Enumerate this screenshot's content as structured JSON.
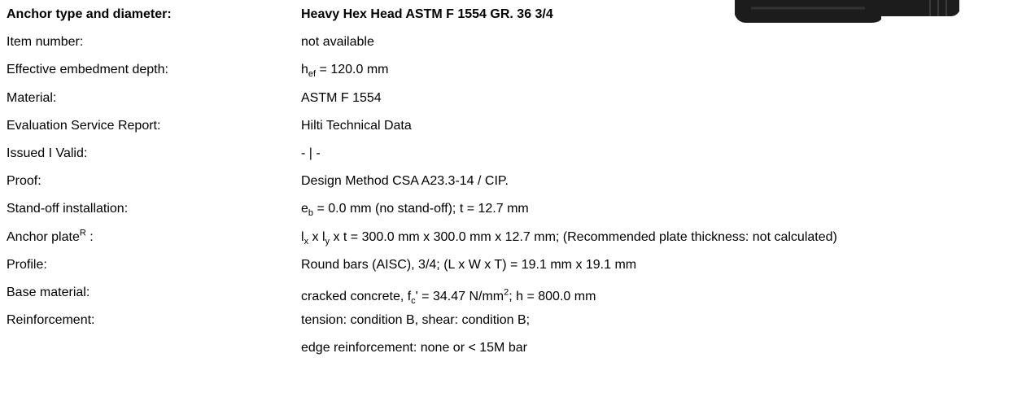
{
  "rows": [
    {
      "bold": true,
      "label": [
        {
          "text": "Anchor type and diameter:"
        }
      ],
      "value": [
        {
          "text": "Heavy Hex Head ASTM F 1554 GR. 36 3/4"
        }
      ]
    },
    {
      "label": [
        {
          "text": "Item number:"
        }
      ],
      "value": [
        {
          "text": "not available"
        }
      ]
    },
    {
      "label": [
        {
          "text": "Effective embedment depth:"
        }
      ],
      "value": [
        {
          "text": "h"
        },
        {
          "sub": "ef"
        },
        {
          "text": " = 120.0 mm"
        }
      ]
    },
    {
      "label": [
        {
          "text": "Material:"
        }
      ],
      "value": [
        {
          "text": "ASTM F 1554"
        }
      ]
    },
    {
      "label": [
        {
          "text": "Evaluation Service Report:"
        }
      ],
      "value": [
        {
          "text": "Hilti Technical Data"
        }
      ]
    },
    {
      "label": [
        {
          "text": "Issued I Valid:"
        }
      ],
      "value": [
        {
          "text": "- | -"
        }
      ]
    },
    {
      "label": [
        {
          "text": "Proof:"
        }
      ],
      "value": [
        {
          "text": "Design Method CSA A23.3-14 / CIP."
        }
      ]
    },
    {
      "label": [
        {
          "text": "Stand-off installation:"
        }
      ],
      "value": [
        {
          "text": "e"
        },
        {
          "sub": "b"
        },
        {
          "text": " = 0.0 mm (no stand-off); t = 12.7 mm"
        }
      ]
    },
    {
      "label": [
        {
          "text": "Anchor plate"
        },
        {
          "sup": "R"
        },
        {
          "text": " :"
        }
      ],
      "value": [
        {
          "text": "l"
        },
        {
          "sub": "x"
        },
        {
          "text": " x l"
        },
        {
          "sub": "y"
        },
        {
          "text": " x t = 300.0 mm x 300.0 mm x 12.7 mm; (Recommended plate thickness: not calculated)"
        }
      ]
    },
    {
      "label": [
        {
          "text": "Profile:"
        }
      ],
      "value": [
        {
          "text": "Round bars (AISC), 3/4; (L x W x T) = 19.1 mm x 19.1 mm"
        }
      ]
    },
    {
      "label": [
        {
          "text": "Base material:"
        }
      ],
      "value": [
        {
          "text": "cracked concrete, f"
        },
        {
          "sub": "c"
        },
        {
          "text": "' = 34.47 N/mm"
        },
        {
          "sup": "2"
        },
        {
          "text": "; h = 800.0 mm"
        }
      ]
    },
    {
      "label": [
        {
          "text": "Reinforcement:"
        }
      ],
      "value": [
        {
          "text": "tension: condition B, shear: condition B;"
        }
      ]
    },
    {
      "value": [
        {
          "text": "edge reinforcement: none or < 15M bar"
        }
      ]
    }
  ]
}
